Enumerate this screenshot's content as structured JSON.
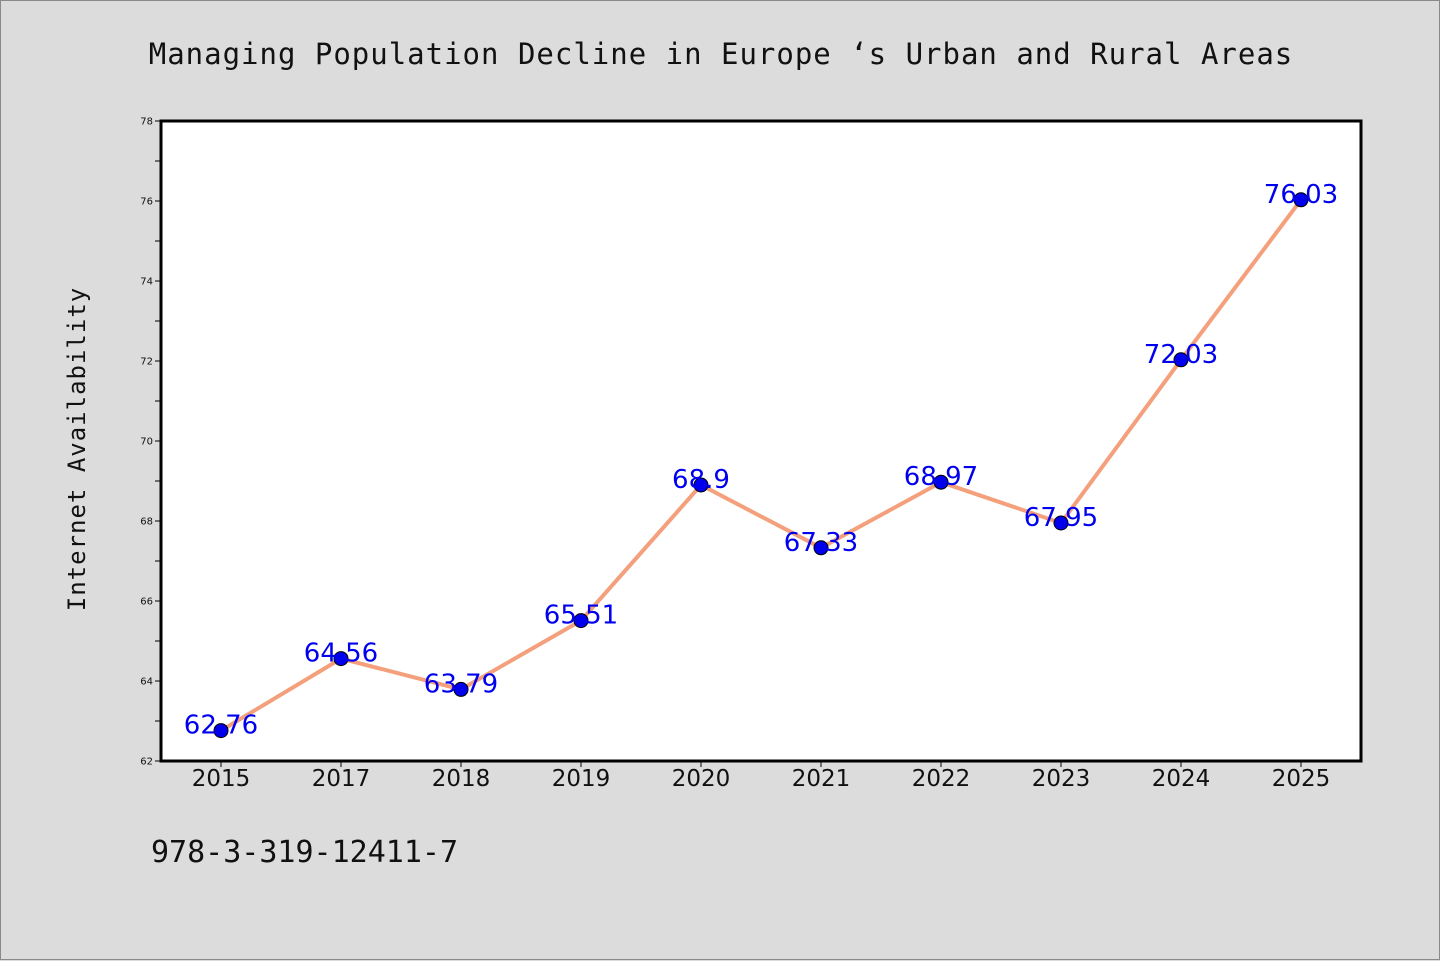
{
  "chart_data": {
    "type": "line",
    "title": "Managing Population Decline in Europe ‘s Urban and Rural Areas",
    "xlabel": "",
    "ylabel": "Internet Availability",
    "categories": [
      "2015",
      "2017",
      "2018",
      "2019",
      "2020",
      "2021",
      "2022",
      "2023",
      "2024",
      "2025"
    ],
    "series": [
      {
        "values": [
          62.76,
          64.56,
          63.79,
          65.51,
          68.9,
          67.33,
          68.97,
          67.95,
          72.03,
          76.03
        ],
        "data_labels": [
          "62.76",
          "64.56",
          "63.79",
          "65.51",
          "68.9",
          "67.33",
          "68.97",
          "67.95",
          "72.03",
          "76.03"
        ],
        "line_color": "#f4a07c",
        "marker_color": "#0000ee"
      }
    ],
    "ylim": [
      62,
      78
    ],
    "yticks": [
      "62",
      "64",
      "66",
      "68",
      "70",
      "72",
      "74",
      "76",
      "78"
    ],
    "grid": false,
    "legend": "none"
  },
  "footer": {
    "isbn": "978-3-319-12411-7"
  }
}
